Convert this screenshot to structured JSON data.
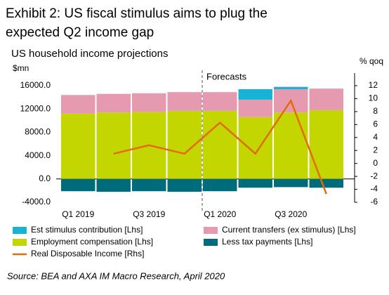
{
  "chart_data": {
    "type": "bar",
    "stacked": true,
    "title": "Exhibit 2: US fiscal stimulus aims to plug the expected Q2 income gap",
    "subtitle": "US household income projections",
    "ylabel": "$mn",
    "y2label": "% qoq",
    "annotation": "Forecasts",
    "source": "Source: BEA and AXA IM Macro Research, April 2020",
    "categories": [
      "Q1 2019",
      null,
      "Q3 2019",
      null,
      "Q1 2020",
      null,
      "Q3 2020",
      null
    ],
    "series": [
      {
        "name": "Employment compensation [Lhs]",
        "color": "#c3d600",
        "values": [
          11200,
          11400,
          11500,
          11700,
          11700,
          10600,
          11400,
          11800
        ]
      },
      {
        "name": "Current transfers (ex stimulus) [Lhs]",
        "color": "#e59ab0",
        "values": [
          3200,
          3200,
          3200,
          3200,
          3200,
          3000,
          4000,
          3700
        ]
      },
      {
        "name": "Est stimulus contribution [Lhs]",
        "color": "#17b3d6",
        "values": [
          0,
          0,
          0,
          0,
          0,
          1800,
          400,
          0
        ]
      },
      {
        "name": "Less tax payments [Lhs]",
        "color": "#006b7a",
        "values": [
          -2100,
          -2200,
          -2100,
          -2200,
          -2100,
          -1500,
          -1400,
          -1500
        ]
      },
      {
        "name": "Real Disposable Income [Rhs]",
        "color": "#e36c0a",
        "type": "line",
        "axis": "y2",
        "values": [
          null,
          1.5,
          2.8,
          1.5,
          6.3,
          1.5,
          9.7,
          -4.7
        ]
      }
    ],
    "ylim": [
      -4000,
      16000
    ],
    "yticks": [
      {
        "value": -4000,
        "label": "-4000.0"
      },
      {
        "value": 0,
        "label": "0.0"
      },
      {
        "value": 4000,
        "label": "4000.0"
      },
      {
        "value": 8000,
        "label": "8000.0"
      },
      {
        "value": 12000,
        "label": "12000.0"
      },
      {
        "value": 16000,
        "label": "16000.0"
      }
    ],
    "y2lim": [
      -6,
      12
    ],
    "y2ticks": [
      -6,
      -4,
      -2,
      0,
      2,
      4,
      6,
      8,
      10,
      12
    ],
    "grid": false
  }
}
